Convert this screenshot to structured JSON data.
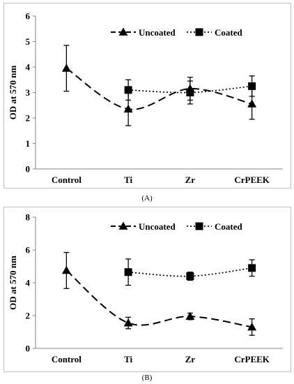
{
  "chart_data": [
    {
      "type": "line",
      "panel_label": "(A)",
      "categories": [
        "Control",
        "Ti",
        "Zr",
        "CrPEEK"
      ],
      "ylabel": "OD at 570 nm",
      "ylim": [
        0,
        6
      ],
      "yticks": [
        0,
        1,
        2,
        3,
        4,
        5,
        6
      ],
      "grid": false,
      "legend_position": "top-right",
      "series": [
        {
          "name": "Uncoated",
          "style": "dashed",
          "marker": "triangle",
          "values": [
            3.95,
            2.35,
            3.15,
            2.55
          ],
          "errors": [
            0.9,
            0.65,
            0.45,
            0.6
          ]
        },
        {
          "name": "Coated",
          "style": "dotted",
          "marker": "square",
          "values": [
            null,
            3.1,
            3.0,
            3.25
          ],
          "errors": [
            null,
            0.4,
            0.45,
            0.4
          ]
        }
      ]
    },
    {
      "type": "line",
      "panel_label": "(B)",
      "categories": [
        "Control",
        "Ti",
        "Zr",
        "CrPEEK"
      ],
      "ylabel": "OD at 570 nm",
      "ylim": [
        0,
        8
      ],
      "yticks": [
        0,
        2,
        4,
        6,
        8
      ],
      "grid": false,
      "legend_position": "top-right",
      "series": [
        {
          "name": "Uncoated",
          "style": "dashed",
          "marker": "triangle",
          "values": [
            4.75,
            1.55,
            1.95,
            1.3
          ],
          "errors": [
            1.1,
            0.35,
            0.2,
            0.5
          ]
        },
        {
          "name": "Coated",
          "style": "dotted",
          "marker": "square",
          "values": [
            null,
            4.65,
            4.4,
            4.9
          ],
          "errors": [
            null,
            0.8,
            0.25,
            0.5
          ]
        }
      ]
    }
  ]
}
